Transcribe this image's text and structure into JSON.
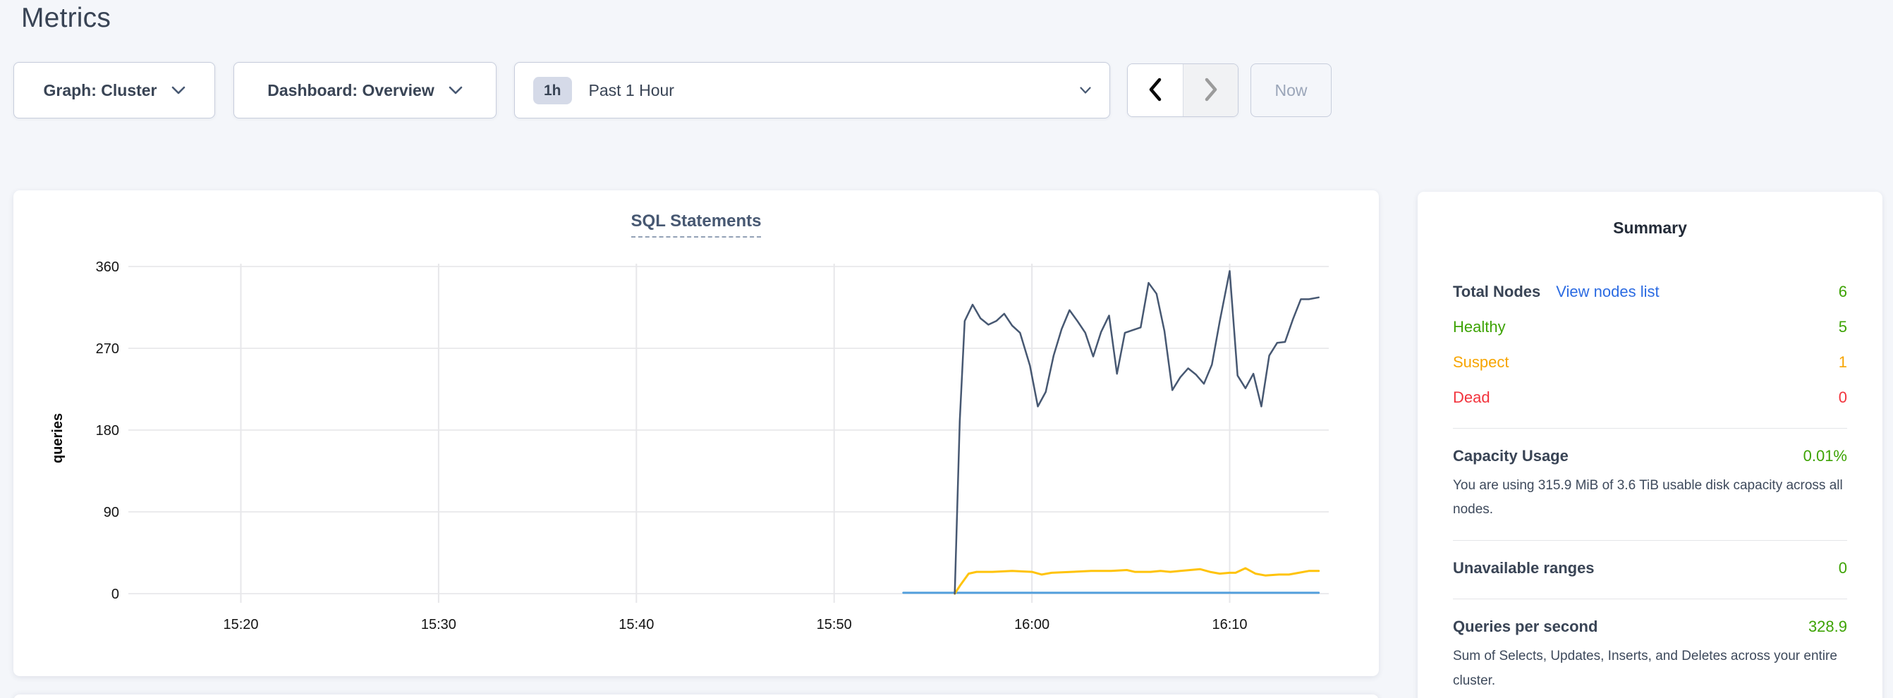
{
  "header": {
    "title": "Metrics"
  },
  "controls": {
    "graph_dropdown": {
      "label": "Graph: Cluster"
    },
    "dashboard_dropdown": {
      "label": "Dashboard: Overview"
    },
    "time_picker": {
      "badge": "1h",
      "label": "Past 1 Hour"
    },
    "now_button": {
      "label": "Now"
    }
  },
  "chart_data": {
    "type": "line",
    "title": "SQL Statements",
    "xlabel": "",
    "ylabel": "queries",
    "ylim": [
      0,
      360
    ],
    "yticks": [
      0,
      90,
      180,
      270,
      360
    ],
    "xticks": [
      "15:20",
      "15:30",
      "15:40",
      "15:50",
      "16:00",
      "16:10"
    ],
    "xtick_minutes": [
      20,
      30,
      40,
      50,
      60,
      70
    ],
    "grid": "on",
    "legend_position": "none",
    "x_unit": "minutes-after-15:00",
    "series": [
      {
        "name": "light-blue-series",
        "color": "#55a0dd",
        "width": 3,
        "x": [
          53.5,
          74.5
        ],
        "values": [
          1,
          1
        ]
      },
      {
        "name": "yellow-series",
        "color": "#ffc30a",
        "width": 3,
        "x": [
          56.1,
          56.4,
          56.8,
          57.2,
          58.0,
          59.0,
          60.0,
          60.5,
          61.0,
          62.0,
          63.0,
          64.0,
          64.8,
          65.2,
          66.0,
          66.5,
          67.0,
          67.5,
          68.0,
          68.5,
          69.0,
          69.5,
          70.0,
          70.3,
          70.8,
          71.3,
          71.8,
          72.5,
          73.0,
          73.5,
          74.0,
          74.5
        ],
        "values": [
          0,
          10,
          22,
          24,
          24,
          25,
          24,
          21,
          23,
          24,
          25,
          25,
          26,
          24,
          24,
          25,
          24,
          25,
          26,
          27,
          24,
          22,
          23,
          23,
          28,
          22,
          20,
          21,
          21,
          23,
          25,
          25
        ]
      },
      {
        "name": "dark-blue-series",
        "color": "#475872",
        "width": 2.5,
        "x": [
          56.1,
          56.35,
          56.6,
          57.0,
          57.4,
          57.8,
          58.2,
          58.6,
          59.0,
          59.4,
          59.9,
          60.3,
          60.7,
          61.1,
          61.5,
          61.9,
          62.3,
          62.7,
          63.1,
          63.5,
          63.9,
          64.3,
          64.7,
          65.1,
          65.5,
          65.9,
          66.3,
          66.7,
          67.1,
          67.5,
          67.9,
          68.3,
          68.7,
          69.1,
          69.5,
          70.0,
          70.4,
          70.8,
          71.2,
          71.6,
          72.0,
          72.4,
          72.8,
          73.2,
          73.6,
          74.0,
          74.5
        ],
        "values": [
          0,
          190,
          300,
          318,
          303,
          296,
          300,
          308,
          295,
          287,
          251,
          206,
          222,
          262,
          291,
          312,
          300,
          287,
          261,
          288,
          306,
          242,
          287,
          290,
          293,
          342,
          330,
          289,
          224,
          238,
          248,
          241,
          231,
          252,
          300,
          355,
          240,
          226,
          242,
          206,
          262,
          276,
          277,
          302,
          324,
          324,
          326
        ]
      }
    ]
  },
  "summary": {
    "title": "Summary",
    "total_nodes": {
      "label": "Total Nodes",
      "link": "View nodes list",
      "value": "6"
    },
    "healthy": {
      "label": "Healthy",
      "value": "5"
    },
    "suspect": {
      "label": "Suspect",
      "value": "1"
    },
    "dead": {
      "label": "Dead",
      "value": "0"
    },
    "capacity": {
      "label": "Capacity Usage",
      "value": "0.01%",
      "desc": "You are using 315.9 MiB of 3.6 TiB usable disk capacity across all nodes."
    },
    "unavailable": {
      "label": "Unavailable ranges",
      "value": "0"
    },
    "qps": {
      "label": "Queries per second",
      "value": "328.9",
      "desc": "Sum of Selects, Updates, Inserts, and Deletes across your entire cluster."
    }
  },
  "colors": {
    "green": "#3da304",
    "orange": "#f7a501",
    "red": "#f2333c",
    "link_blue": "#2b6be2",
    "heading_slate": "#394455",
    "chart_title_slate": "#475872"
  }
}
